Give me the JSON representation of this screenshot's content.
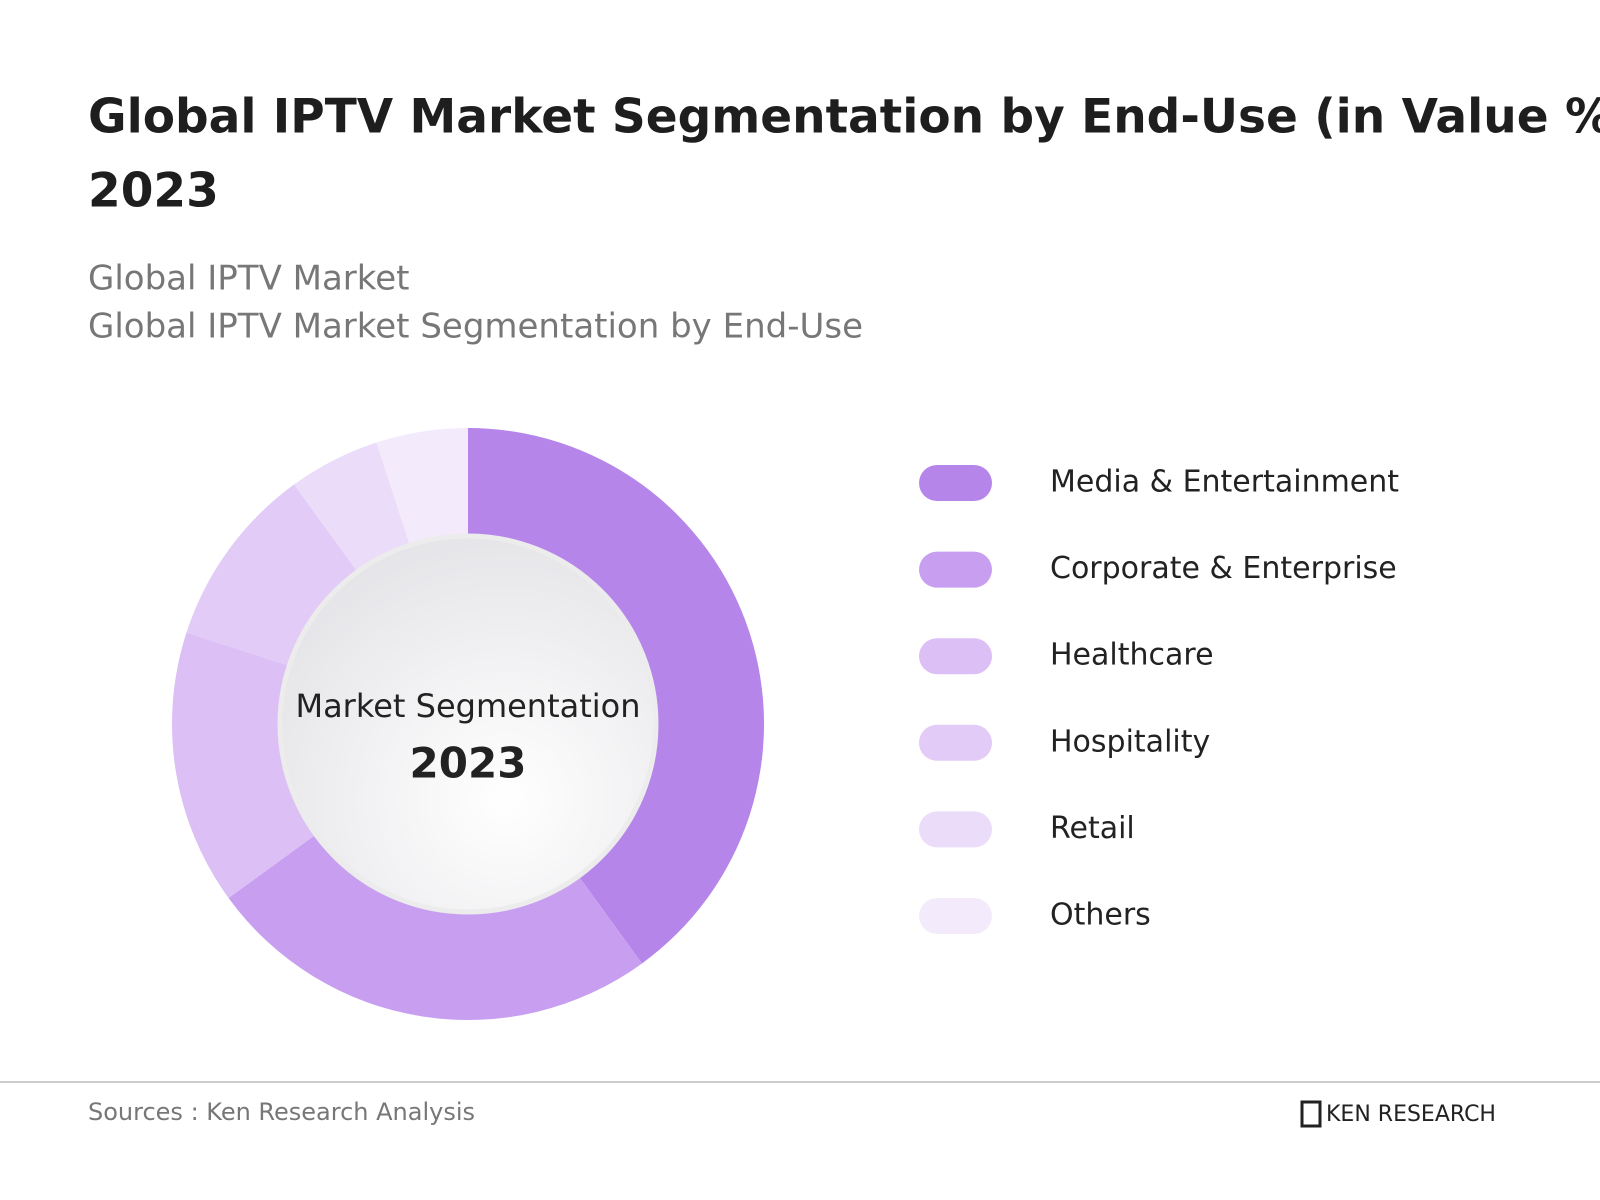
{
  "chart_data": {
    "type": "pie",
    "title": [
      "Global IPTV Market Segmentation by End-Use (in Value %),",
      "2023"
    ],
    "subtitle": [
      "Global IPTV Market",
      "Global IPTV Market Segmentation by End-Use"
    ],
    "center_label": "Market Segmentation",
    "center_year": "2023",
    "categories": [
      "Media & Entertainment",
      "Corporate & Enterprise",
      "Healthcare",
      "Hospitality",
      "Retail",
      "Others"
    ],
    "values": [
      40,
      25,
      15,
      10,
      5,
      5
    ],
    "colors": [
      "#b585ea",
      "#c89ff0",
      "#dbbff5",
      "#e2cbf7",
      "#ebdcf9",
      "#f3ebfc"
    ]
  },
  "footer": {
    "source": "Sources : Ken Research Analysis",
    "logo": "KEN RESEARCH"
  }
}
